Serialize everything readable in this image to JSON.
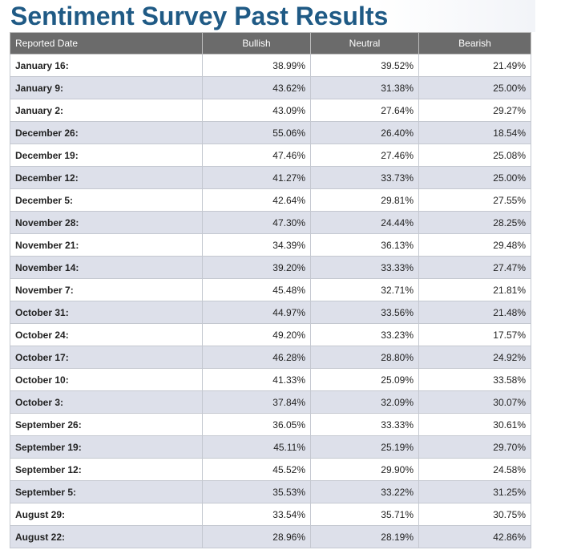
{
  "page": {
    "title": "Sentiment Survey Past Results"
  },
  "table": {
    "headers": [
      "Reported Date",
      "Bullish",
      "Neutral",
      "Bearish"
    ],
    "rows": [
      [
        "January 16:",
        "38.99%",
        "39.52%",
        "21.49%"
      ],
      [
        "January 9:",
        "43.62%",
        "31.38%",
        "25.00%"
      ],
      [
        "January 2:",
        "43.09%",
        "27.64%",
        "29.27%"
      ],
      [
        "December 26:",
        "55.06%",
        "26.40%",
        "18.54%"
      ],
      [
        "December 19:",
        "47.46%",
        "27.46%",
        "25.08%"
      ],
      [
        "December 12:",
        "41.27%",
        "33.73%",
        "25.00%"
      ],
      [
        "December 5:",
        "42.64%",
        "29.81%",
        "27.55%"
      ],
      [
        "November 28:",
        "47.30%",
        "24.44%",
        "28.25%"
      ],
      [
        "November 21:",
        "34.39%",
        "36.13%",
        "29.48%"
      ],
      [
        "November 14:",
        "39.20%",
        "33.33%",
        "27.47%"
      ],
      [
        "November 7:",
        "45.48%",
        "32.71%",
        "21.81%"
      ],
      [
        "October 31:",
        "44.97%",
        "33.56%",
        "21.48%"
      ],
      [
        "October 24:",
        "49.20%",
        "33.23%",
        "17.57%"
      ],
      [
        "October 17:",
        "46.28%",
        "28.80%",
        "24.92%"
      ],
      [
        "October 10:",
        "41.33%",
        "25.09%",
        "33.58%"
      ],
      [
        "October 3:",
        "37.84%",
        "32.09%",
        "30.07%"
      ],
      [
        "September 26:",
        "36.05%",
        "33.33%",
        "30.61%"
      ],
      [
        "September 19:",
        "45.11%",
        "25.19%",
        "29.70%"
      ],
      [
        "September 12:",
        "45.52%",
        "29.90%",
        "24.58%"
      ],
      [
        "September 5:",
        "35.53%",
        "33.22%",
        "31.25%"
      ],
      [
        "August 29:",
        "33.54%",
        "35.71%",
        "30.75%"
      ],
      [
        "August 22:",
        "28.96%",
        "28.19%",
        "42.86%"
      ]
    ]
  },
  "colors": {
    "title": "#1f5a85",
    "header_bg": "#6b6b6b",
    "header_text": "#ffffff",
    "row_alt_bg": "#dde0ea",
    "row_bg": "#ffffff"
  }
}
